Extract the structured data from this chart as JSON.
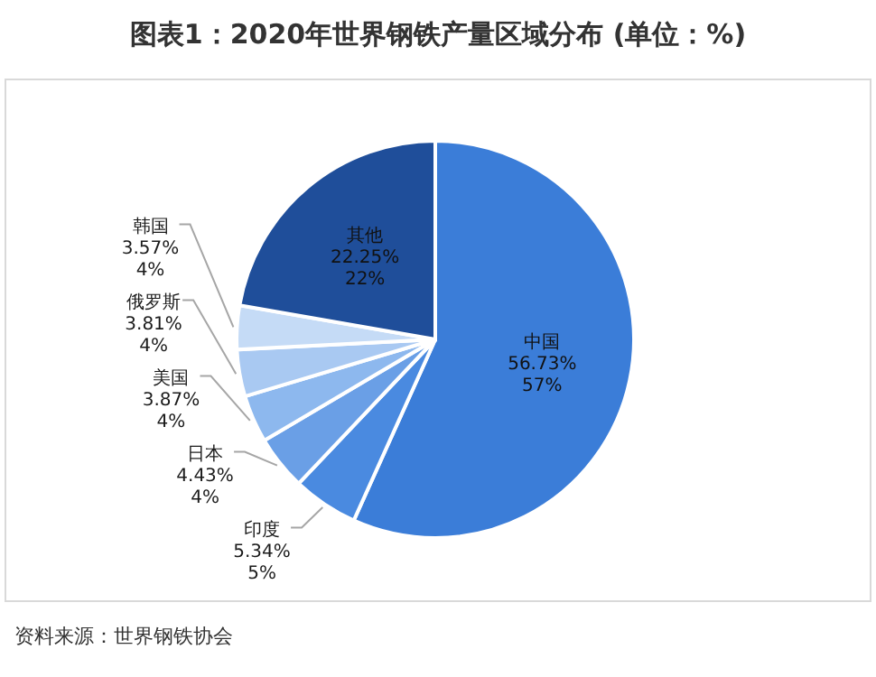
{
  "chart_data": {
    "type": "pie",
    "title": "图表1：2020年世界钢铁产量区域分布 (单位：%)",
    "categories": [
      "中国",
      "印度",
      "日本",
      "美国",
      "俄罗斯",
      "韩国",
      "其他"
    ],
    "values": [
      56.73,
      5.34,
      4.43,
      3.87,
      3.81,
      3.57,
      22.25
    ],
    "colors": [
      "#3b7dd8",
      "#4a8ae0",
      "#6a9fe6",
      "#8db8ee",
      "#a9c9f2",
      "#c5dbf6",
      "#1f4e9a"
    ],
    "value_labels": [
      "56.73%\n57%",
      "5.34%\n5%",
      "4.43%\n4%",
      "3.87%\n4%",
      "3.81%\n4%",
      "3.57%\n4%",
      "22.25%\n22%"
    ],
    "annotations": [
      "资料来源：世界钢铁协会"
    ]
  }
}
